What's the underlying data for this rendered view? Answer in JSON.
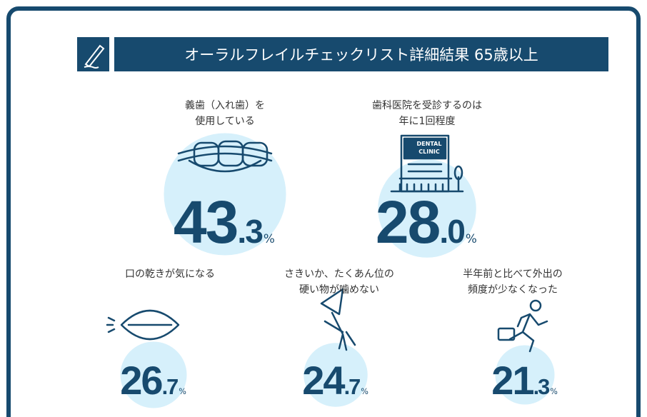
{
  "header": {
    "title": "オーラルフレイルチェックリスト詳細結果 65歳以上"
  },
  "items": [
    {
      "label": [
        "義歯（入れ歯）を",
        "使用している"
      ],
      "value": 43.3,
      "unit": "%"
    },
    {
      "label": [
        "歯科医院を受診するのは",
        "年に1回程度"
      ],
      "value": 28.0,
      "unit": "%",
      "icon_text": [
        "DENTAL",
        "CLINIC"
      ]
    },
    {
      "label": [
        "口の乾きが気になる"
      ],
      "value": 26.7,
      "unit": "%"
    },
    {
      "label": [
        "さきいか、たくあん位の",
        "硬い物が噛めない"
      ],
      "value": 24.7,
      "unit": "%"
    },
    {
      "label": [
        "半年前と比べて外出の",
        "頻度が少なくなった"
      ],
      "value": 21.3,
      "unit": "%"
    }
  ]
}
